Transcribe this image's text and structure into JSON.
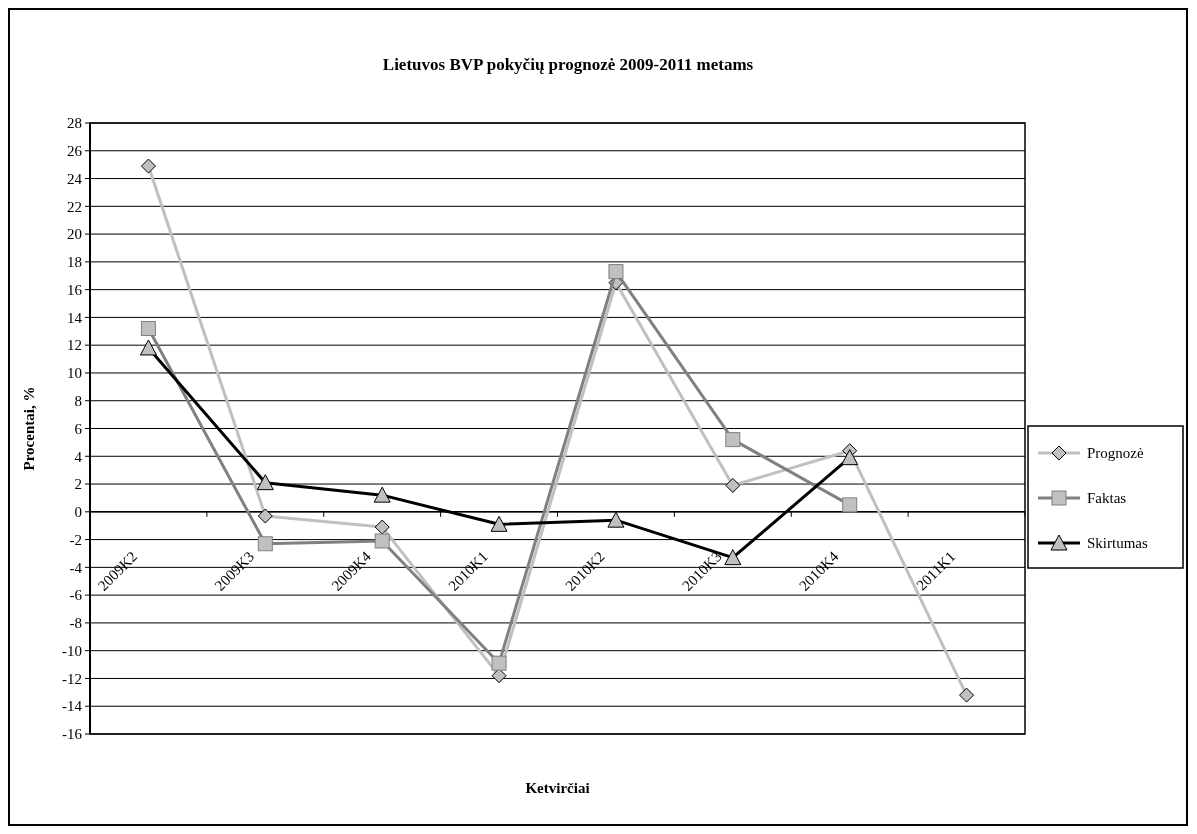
{
  "chart_data": {
    "type": "line",
    "title": "Lietuvos BVP pokyčių prognozė 2009-2011 metams",
    "xlabel": "Ketvirčiai",
    "ylabel": "Procentai, %",
    "categories": [
      "2009K2",
      "2009K3",
      "2009K4",
      "2010K1",
      "2010K2",
      "2010K3",
      "2010K4",
      "2011K1"
    ],
    "series": [
      {
        "name": "Prognozė",
        "color": "#c0c0c0",
        "marker": "diamond",
        "values": [
          24.9,
          -0.3,
          -1.1,
          -11.8,
          16.5,
          1.9,
          4.4,
          -13.2
        ]
      },
      {
        "name": "Faktas",
        "color": "#808080",
        "marker": "square",
        "values": [
          13.2,
          -2.3,
          -2.1,
          -10.9,
          17.3,
          5.2,
          0.5,
          null
        ]
      },
      {
        "name": "Skirtumas",
        "color": "#000000",
        "marker": "triangle",
        "values": [
          11.8,
          2.1,
          1.2,
          -0.9,
          -0.6,
          -3.3,
          3.9,
          null
        ]
      }
    ],
    "ylim": [
      -16,
      28
    ],
    "yticks": [
      -16,
      -14,
      -12,
      -10,
      -8,
      -6,
      -4,
      -2,
      0,
      2,
      4,
      6,
      8,
      10,
      12,
      14,
      16,
      18,
      20,
      22,
      24,
      26,
      28
    ],
    "grid": "y",
    "legend": "right"
  }
}
